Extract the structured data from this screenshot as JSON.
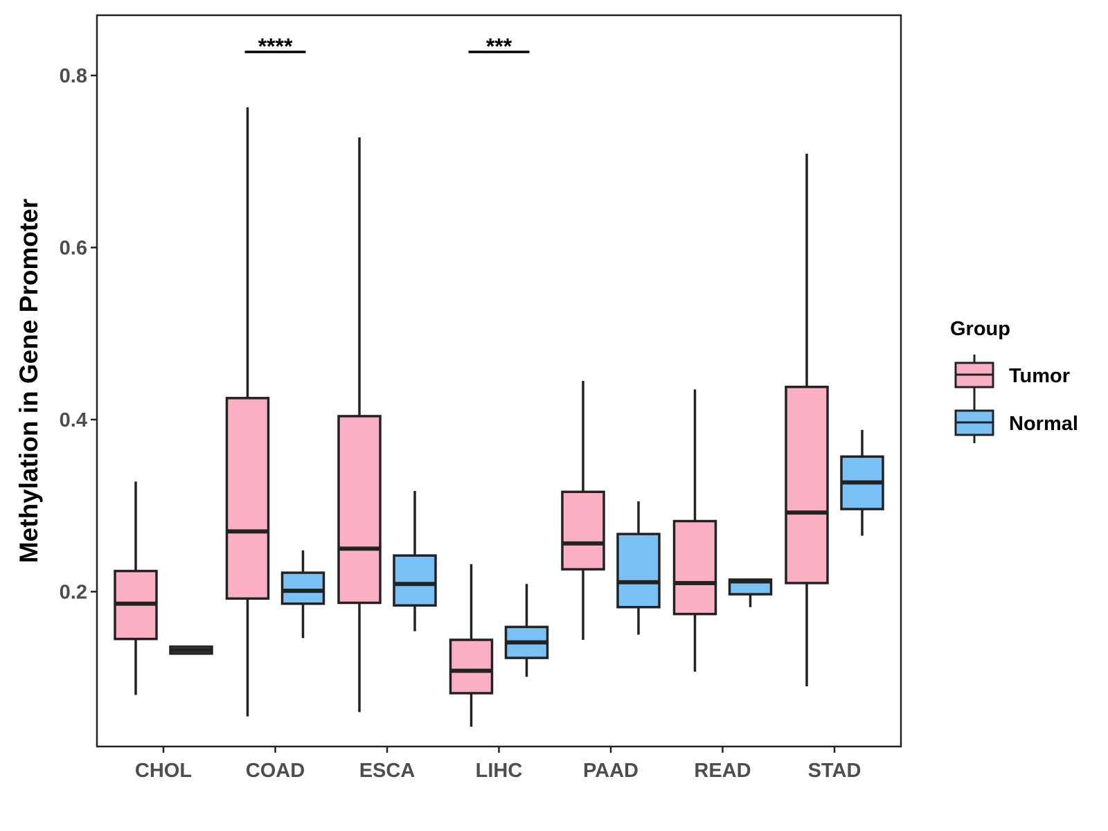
{
  "chart_data": {
    "type": "boxplot",
    "title": "",
    "xlabel": "",
    "ylabel": "Methylation in Gene Promoter",
    "ylim": [
      0.02,
      0.87
    ],
    "yticks": [
      "0.2",
      "0.4",
      "0.6",
      "0.8"
    ],
    "categories": [
      "CHOL",
      "COAD",
      "ESCA",
      "LIHC",
      "PAAD",
      "READ",
      "STAD"
    ],
    "legend": {
      "title": "Group",
      "position": "right",
      "entries": [
        "Tumor",
        "Normal"
      ]
    },
    "colors": {
      "Tumor": "#FBAFC2",
      "Normal": "#7AC1F6",
      "stroke": "#222222"
    },
    "series": [
      {
        "name": "Tumor",
        "boxes": [
          {
            "min": 0.08,
            "q1": 0.145,
            "median": 0.186,
            "q3": 0.224,
            "max": 0.328
          },
          {
            "min": 0.055,
            "q1": 0.192,
            "median": 0.27,
            "q3": 0.425,
            "max": 0.763
          },
          {
            "min": 0.06,
            "q1": 0.187,
            "median": 0.25,
            "q3": 0.404,
            "max": 0.728
          },
          {
            "min": 0.043,
            "q1": 0.082,
            "median": 0.108,
            "q3": 0.144,
            "max": 0.232
          },
          {
            "min": 0.144,
            "q1": 0.226,
            "median": 0.256,
            "q3": 0.316,
            "max": 0.445
          },
          {
            "min": 0.107,
            "q1": 0.174,
            "median": 0.21,
            "q3": 0.282,
            "max": 0.435
          },
          {
            "min": 0.09,
            "q1": 0.21,
            "median": 0.292,
            "q3": 0.438,
            "max": 0.709
          }
        ]
      },
      {
        "name": "Normal",
        "boxes": [
          {
            "min": 0.128,
            "q1": 0.128,
            "median": 0.132,
            "q3": 0.136,
            "max": 0.136
          },
          {
            "min": 0.146,
            "q1": 0.186,
            "median": 0.201,
            "q3": 0.222,
            "max": 0.248
          },
          {
            "min": 0.154,
            "q1": 0.184,
            "median": 0.209,
            "q3": 0.242,
            "max": 0.317
          },
          {
            "min": 0.101,
            "q1": 0.123,
            "median": 0.141,
            "q3": 0.159,
            "max": 0.209
          },
          {
            "min": 0.15,
            "q1": 0.182,
            "median": 0.211,
            "q3": 0.267,
            "max": 0.305
          },
          {
            "min": 0.182,
            "q1": 0.197,
            "median": 0.212,
            "q3": 0.214,
            "max": 0.214
          },
          {
            "min": 0.265,
            "q1": 0.296,
            "median": 0.327,
            "q3": 0.357,
            "max": 0.388
          }
        ]
      }
    ],
    "annotations": [
      {
        "category": "COAD",
        "label": "****"
      },
      {
        "category": "LIHC",
        "label": "***"
      }
    ]
  }
}
